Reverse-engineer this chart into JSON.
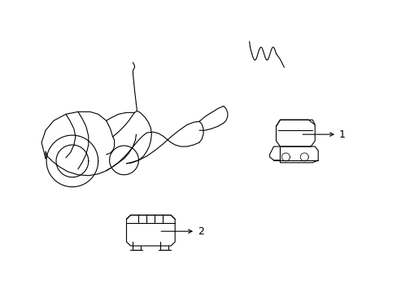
{
  "background_color": "#ffffff",
  "line_color": "#000000",
  "line_width": 0.8,
  "figsize": [
    4.89,
    3.6
  ],
  "dpi": 100,
  "label_1": "1",
  "label_2": "2",
  "label_fontsize": 9
}
